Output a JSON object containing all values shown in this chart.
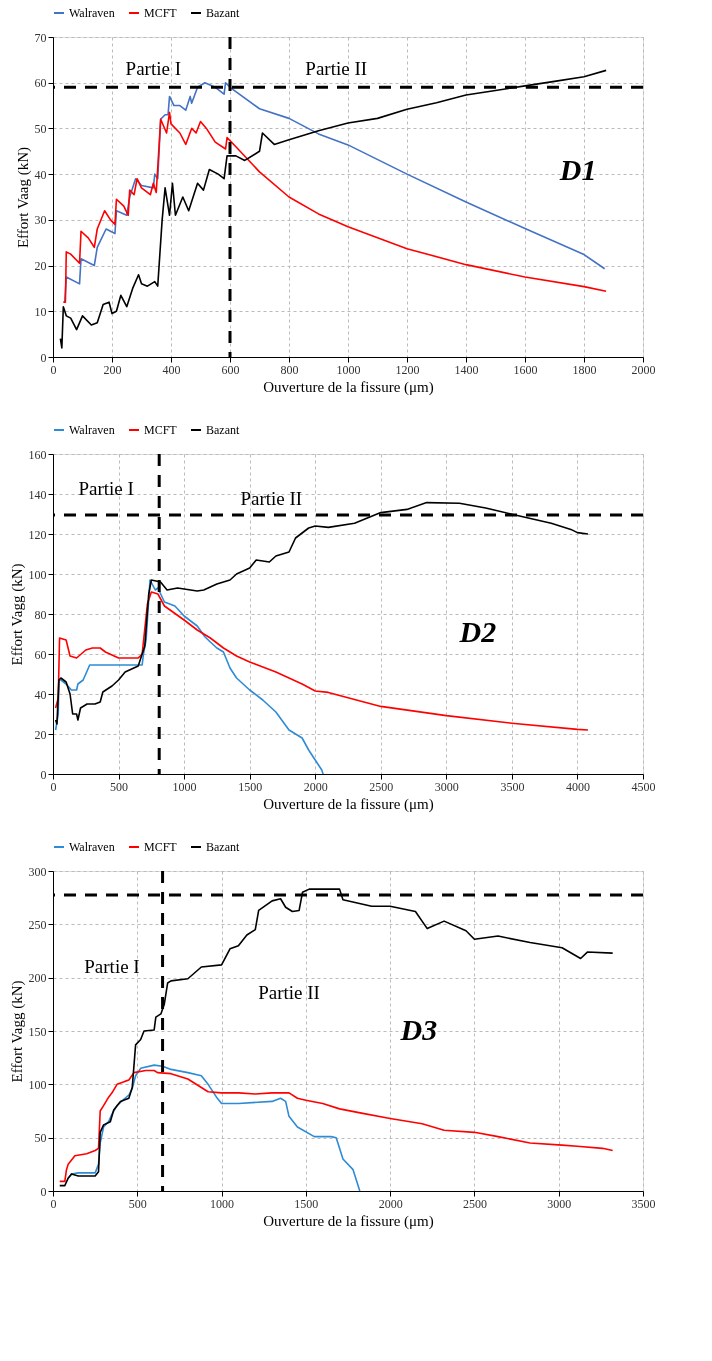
{
  "chart_data": [
    {
      "type": "line",
      "xlabel": "Ouverture de la fissure (μm)",
      "ylabel": "Effort Vaag (kN)",
      "xlim": [
        0,
        2000
      ],
      "ylim": [
        0,
        70
      ],
      "xticks": [
        0,
        200,
        400,
        600,
        800,
        1000,
        1200,
        1400,
        1600,
        1800,
        2000
      ],
      "yticks": [
        0,
        10,
        20,
        30,
        40,
        50,
        60,
        70
      ],
      "grid": true,
      "legend": "top",
      "line_style": "solid",
      "marker": "none",
      "annotations": [
        "Partie I",
        "Partie II",
        "D1"
      ],
      "ref_lines": [
        {
          "axis": "y",
          "value": 59,
          "color": "#000000",
          "line_style": "dashed"
        },
        {
          "axis": "x",
          "value": 600,
          "color": "#000000",
          "line_style": "dashed"
        }
      ],
      "series": [
        {
          "name": "Walraven",
          "color": "#4472c4",
          "x": [
            40,
            45,
            90,
            95,
            140,
            150,
            180,
            210,
            215,
            250,
            260,
            280,
            300,
            340,
            345,
            355,
            365,
            380,
            390,
            395,
            410,
            430,
            450,
            465,
            470,
            490,
            515,
            550,
            580,
            585,
            600,
            700,
            800,
            900,
            1000,
            1200,
            1400,
            1600,
            1800,
            1870
          ],
          "values": [
            12,
            17.5,
            16,
            21.5,
            20,
            24,
            28,
            27,
            32,
            31,
            35,
            39,
            37.5,
            37,
            40,
            39,
            52,
            53,
            53,
            57,
            55,
            55,
            54,
            57,
            55.5,
            59,
            60,
            59,
            57.5,
            60,
            59,
            54.3,
            52.2,
            48.8,
            46.4,
            40,
            33.9,
            28.1,
            22.4,
            19.3
          ]
        },
        {
          "name": "MCFT",
          "color": "#ff0000",
          "x": [
            35,
            42,
            45,
            60,
            90,
            95,
            120,
            140,
            150,
            175,
            195,
            210,
            215,
            240,
            255,
            260,
            275,
            285,
            300,
            330,
            340,
            350,
            365,
            385,
            395,
            400,
            430,
            450,
            470,
            485,
            500,
            520,
            550,
            585,
            590,
            620,
            700,
            800,
            900,
            1000,
            1200,
            1400,
            1600,
            1800,
            1875
          ],
          "values": [
            12,
            12,
            23,
            22.5,
            20.5,
            27.5,
            26,
            24,
            28,
            32,
            30,
            29,
            34.5,
            33,
            31,
            36.5,
            35.5,
            39,
            37,
            35.5,
            38,
            36,
            52,
            49,
            53.5,
            51,
            49,
            46.5,
            50,
            49,
            51.5,
            50,
            47,
            45.5,
            48,
            46,
            40.5,
            35,
            31.3,
            28.5,
            23.7,
            20.2,
            17.5,
            15.4,
            14.4
          ]
        },
        {
          "name": "Bazant",
          "color": "#000000",
          "x": [
            25,
            30,
            35,
            45,
            60,
            80,
            100,
            130,
            150,
            170,
            190,
            200,
            215,
            230,
            250,
            270,
            290,
            300,
            320,
            345,
            355,
            370,
            380,
            395,
            405,
            415,
            440,
            460,
            490,
            510,
            530,
            560,
            580,
            590,
            620,
            650,
            700,
            710,
            750,
            800,
            900,
            1000,
            1100,
            1200,
            1300,
            1400,
            1500,
            1600,
            1700,
            1800,
            1875
          ],
          "values": [
            4,
            2,
            11,
            9,
            8.5,
            6,
            9,
            7,
            7.5,
            11.5,
            12,
            9.5,
            10,
            13.5,
            11,
            15,
            18,
            16,
            15.5,
            16.5,
            15.5,
            30,
            37,
            31,
            38,
            31,
            35,
            32,
            38,
            36.5,
            41,
            40,
            39,
            44,
            44,
            43,
            45,
            49,
            46.5,
            47.5,
            49.5,
            51.2,
            52.2,
            54.2,
            55.6,
            57.3,
            58.3,
            59.3,
            60.3,
            61.3,
            62.7
          ]
        }
      ]
    },
    {
      "type": "line",
      "xlabel": "Ouverture de la fissure (μm)",
      "ylabel": "Effort Vagg (kN)",
      "xlim": [
        0,
        4500
      ],
      "ylim": [
        0,
        160
      ],
      "xticks": [
        0,
        500,
        1000,
        1500,
        2000,
        2500,
        3000,
        3500,
        4000,
        4500
      ],
      "yticks": [
        0,
        20,
        40,
        60,
        80,
        100,
        120,
        140,
        160
      ],
      "grid": true,
      "legend": "top",
      "line_style": "solid",
      "marker": "none",
      "annotations": [
        "Partie I",
        "Partie II",
        "D2"
      ],
      "ref_lines": [
        {
          "axis": "y",
          "value": 129.5,
          "color": "#000000",
          "line_style": "dashed"
        },
        {
          "axis": "x",
          "value": 810,
          "color": "#000000",
          "line_style": "dashed"
        }
      ],
      "series": [
        {
          "name": "Walraven",
          "color": "#2e8bd6",
          "x": [
            20,
            40,
            45,
            60,
            100,
            140,
            180,
            190,
            230,
            270,
            280,
            500,
            680,
            690,
            710,
            740,
            780,
            800,
            850,
            930,
            1000,
            1100,
            1160,
            1200,
            1250,
            1300,
            1350,
            1400,
            1500,
            1600,
            1700,
            1800,
            1900,
            1950,
            2000,
            2050,
            2060
          ],
          "values": [
            22,
            30,
            47,
            47,
            45,
            42,
            42,
            45,
            47,
            53,
            54.5,
            54.5,
            54.5,
            60,
            67,
            97,
            92,
            93,
            86,
            84,
            79,
            74,
            68.5,
            66,
            63,
            61,
            53,
            48,
            42,
            37,
            31,
            22,
            18,
            12,
            7,
            2,
            0
          ]
        },
        {
          "name": "MCFT",
          "color": "#ff0000",
          "x": [
            20,
            40,
            50,
            100,
            130,
            180,
            250,
            300,
            360,
            400,
            500,
            650,
            680,
            720,
            750,
            800,
            850,
            1000,
            1100,
            1200,
            1300,
            1400,
            1500,
            1700,
            1900,
            2000,
            2100,
            2500,
            3000,
            3500,
            4000,
            4080
          ],
          "values": [
            33,
            38,
            68,
            67,
            59,
            58,
            62,
            63,
            63,
            61,
            58,
            58,
            60,
            85,
            91,
            90,
            84,
            77,
            72,
            68,
            63,
            59,
            56,
            51,
            45,
            41.5,
            40.8,
            33.8,
            29.2,
            25.4,
            22.3,
            22
          ]
        },
        {
          "name": "Bazant",
          "color": "#000000",
          "x": [
            20,
            30,
            45,
            60,
            100,
            130,
            150,
            180,
            190,
            210,
            260,
            320,
            360,
            380,
            450,
            500,
            550,
            650,
            700,
            730,
            750,
            820,
            870,
            950,
            1050,
            1100,
            1150,
            1250,
            1350,
            1400,
            1500,
            1550,
            1650,
            1700,
            1800,
            1850,
            1950,
            2000,
            2100,
            2300,
            2500,
            2700,
            2850,
            3100,
            3300,
            3500,
            3800,
            3950,
            4000,
            4080
          ],
          "values": [
            27,
            25,
            47,
            48,
            46,
            40,
            30,
            30,
            27,
            33,
            35,
            35,
            36,
            41,
            44,
            47,
            51,
            54,
            64,
            90,
            97,
            96,
            92,
            93,
            92,
            91.5,
            92,
            95,
            97,
            100,
            103,
            107,
            106,
            109,
            111,
            118,
            123,
            124,
            123.3,
            125.4,
            130.7,
            132.3,
            135.7,
            135.4,
            133,
            129.9,
            125.4,
            122.3,
            120.7,
            120
          ]
        }
      ]
    },
    {
      "type": "line",
      "xlabel": "Ouverture de la fissure (μm)",
      "ylabel": "Effort Vagg (kN)",
      "xlim": [
        0,
        3500
      ],
      "ylim": [
        0,
        300
      ],
      "xticks": [
        0,
        500,
        1000,
        1500,
        2000,
        2500,
        3000,
        3500
      ],
      "yticks": [
        0,
        50,
        100,
        150,
        200,
        250,
        300
      ],
      "grid": true,
      "legend": "top",
      "line_style": "solid",
      "marker": "none",
      "annotations": [
        "Partie I",
        "Partie II",
        "D3"
      ],
      "ref_lines": [
        {
          "axis": "y",
          "value": 277.5,
          "color": "#000000",
          "line_style": "dashed"
        },
        {
          "axis": "x",
          "value": 650,
          "color": "#000000",
          "line_style": "dashed"
        }
      ],
      "series": [
        {
          "name": "Walraven",
          "color": "#2e8bd6",
          "x": [
            90,
            110,
            150,
            250,
            270,
            280,
            300,
            330,
            350,
            380,
            420,
            450,
            470,
            490,
            520,
            600,
            650,
            700,
            800,
            880,
            920,
            970,
            1000,
            1100,
            1300,
            1350,
            1380,
            1400,
            1450,
            1550,
            1650,
            1680,
            1700,
            1720,
            1780,
            1820
          ],
          "values": [
            12,
            16,
            17,
            17,
            25,
            45,
            60,
            65,
            72,
            80,
            86,
            90,
            96,
            108,
            115,
            118,
            117,
            114,
            111,
            108,
            100,
            88,
            82,
            82,
            84,
            87,
            84,
            70,
            60,
            51,
            51,
            50,
            40,
            30,
            20,
            0
          ]
        },
        {
          "name": "MCFT",
          "color": "#ff0000",
          "x": [
            40,
            70,
            80,
            90,
            130,
            200,
            250,
            270,
            280,
            300,
            330,
            350,
            380,
            430,
            450,
            480,
            550,
            600,
            620,
            700,
            800,
            880,
            920,
            1000,
            1100,
            1200,
            1300,
            1400,
            1450,
            1500,
            1600,
            1700,
            1830,
            2000,
            2190,
            2320,
            2500,
            2640,
            2830,
            3020,
            3110,
            3260,
            3320
          ],
          "values": [
            9,
            9,
            20,
            25,
            33,
            35,
            38,
            40,
            75,
            80,
            88,
            92,
            100,
            103,
            104,
            111,
            113,
            113,
            111,
            110,
            105,
            97,
            93,
            92,
            92,
            91,
            92,
            92,
            87,
            85,
            82,
            77,
            73,
            68,
            63,
            57,
            55,
            51,
            45,
            43,
            42,
            40,
            38
          ]
        },
        {
          "name": "Bazant",
          "color": "#000000",
          "x": [
            40,
            70,
            90,
            110,
            150,
            250,
            270,
            280,
            300,
            340,
            360,
            400,
            450,
            470,
            490,
            520,
            540,
            600,
            610,
            640,
            660,
            680,
            700,
            800,
            880,
            1000,
            1050,
            1100,
            1150,
            1200,
            1220,
            1300,
            1350,
            1380,
            1420,
            1460,
            1480,
            1520,
            1700,
            1720,
            1890,
            2000,
            2150,
            2220,
            2320,
            2450,
            2500,
            2640,
            2830,
            3020,
            3130,
            3170,
            3320
          ],
          "values": [
            5,
            5,
            12,
            16,
            14,
            14,
            18,
            55,
            62,
            65,
            76,
            84,
            87,
            97,
            137,
            142,
            150,
            151,
            163,
            166,
            175,
            195,
            197,
            199,
            210,
            212,
            227,
            230,
            240,
            245,
            263,
            272,
            274,
            266,
            262,
            263,
            280,
            283,
            283,
            273,
            267,
            267,
            262,
            246,
            253,
            244,
            236,
            239,
            233,
            228,
            218,
            224,
            223
          ]
        }
      ]
    }
  ]
}
